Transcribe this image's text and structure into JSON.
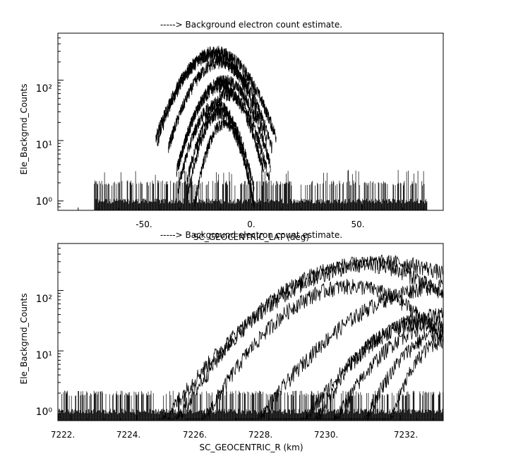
{
  "chart_data": [
    {
      "type": "line",
      "title": "-----> Background electron count estimate.",
      "xlabel": "SC_GEOCENTRIC_LAT (deg)",
      "ylabel": "Ele_Backgrnd_Counts",
      "y_scale": "log",
      "xlim": [
        -100,
        90
      ],
      "ylim": [
        0.7,
        600
      ],
      "x_ticks": [
        -50,
        0,
        50
      ],
      "x_tick_labels": [
        "-50.",
        "0.",
        "50."
      ],
      "y_ticks": [
        1,
        10,
        100
      ],
      "y_tick_labels": [
        "10⁰",
        "10¹",
        "10²"
      ],
      "baseline_range": [
        -82,
        82
      ],
      "baseline_levels": [
        1,
        2,
        3
      ],
      "series": [
        {
          "center": -22,
          "width": 22,
          "peak": 300
        },
        {
          "center": -24,
          "width": 20,
          "peak": 260
        },
        {
          "center": -20,
          "width": 19,
          "peak": 200
        },
        {
          "center": -18,
          "width": 17,
          "peak": 100
        },
        {
          "center": -20,
          "width": 16,
          "peak": 80
        },
        {
          "center": -16,
          "width": 15,
          "peak": 60
        },
        {
          "center": -22,
          "width": 14,
          "peak": 40
        },
        {
          "center": -20,
          "width": 12,
          "peak": 30
        },
        {
          "center": -18,
          "width": 11,
          "peak": 20
        }
      ],
      "grid": false,
      "legend": "none"
    },
    {
      "type": "line",
      "title": "-----> Background electron count estimate.",
      "xlabel": "SC_GEOCENTRIC_R (km)",
      "ylabel": "Ele_Backgrnd_Counts",
      "y_scale": "log",
      "xlim": [
        7221.6,
        7233.3
      ],
      "ylim": [
        0.7,
        600
      ],
      "x_ticks": [
        7222,
        7224,
        7226,
        7228,
        7230,
        7232
      ],
      "x_tick_labels": [
        "7222.",
        "7224.",
        "7226.",
        "7228.",
        "7230.",
        "7232."
      ],
      "y_ticks": [
        1,
        10,
        100
      ],
      "y_tick_labels": [
        "10⁰",
        "10¹",
        "10²"
      ],
      "baseline_range": [
        7221.6,
        7233.3
      ],
      "baseline_levels": [
        1,
        2
      ],
      "series": [
        {
          "x_start": 7224.6,
          "peak_x": 7231.5,
          "peak": 300,
          "x_end": 7233.3
        },
        {
          "x_start": 7225.0,
          "peak_x": 7230.8,
          "peak": 280,
          "x_end": 7233.3
        },
        {
          "x_start": 7225.5,
          "peak_x": 7230.5,
          "peak": 120,
          "x_end": 7233.3
        },
        {
          "x_start": 7227.0,
          "peak_x": 7233.3,
          "peak": 120,
          "x_end": 7233.3
        },
        {
          "x_start": 7228.0,
          "peak_x": 7233.3,
          "peak": 40,
          "x_end": 7233.3
        },
        {
          "x_start": 7228.5,
          "peak_x": 7232.5,
          "peak": 30,
          "x_end": 7233.3
        },
        {
          "x_start": 7229.0,
          "peak_x": 7233.3,
          "peak": 30,
          "x_end": 7233.3
        },
        {
          "x_start": 7230.0,
          "peak_x": 7233.3,
          "peak": 20,
          "x_end": 7233.3
        },
        {
          "x_start": 7231.0,
          "peak_x": 7233.3,
          "peak": 15,
          "x_end": 7233.3
        }
      ],
      "grid": false,
      "legend": "none"
    }
  ]
}
